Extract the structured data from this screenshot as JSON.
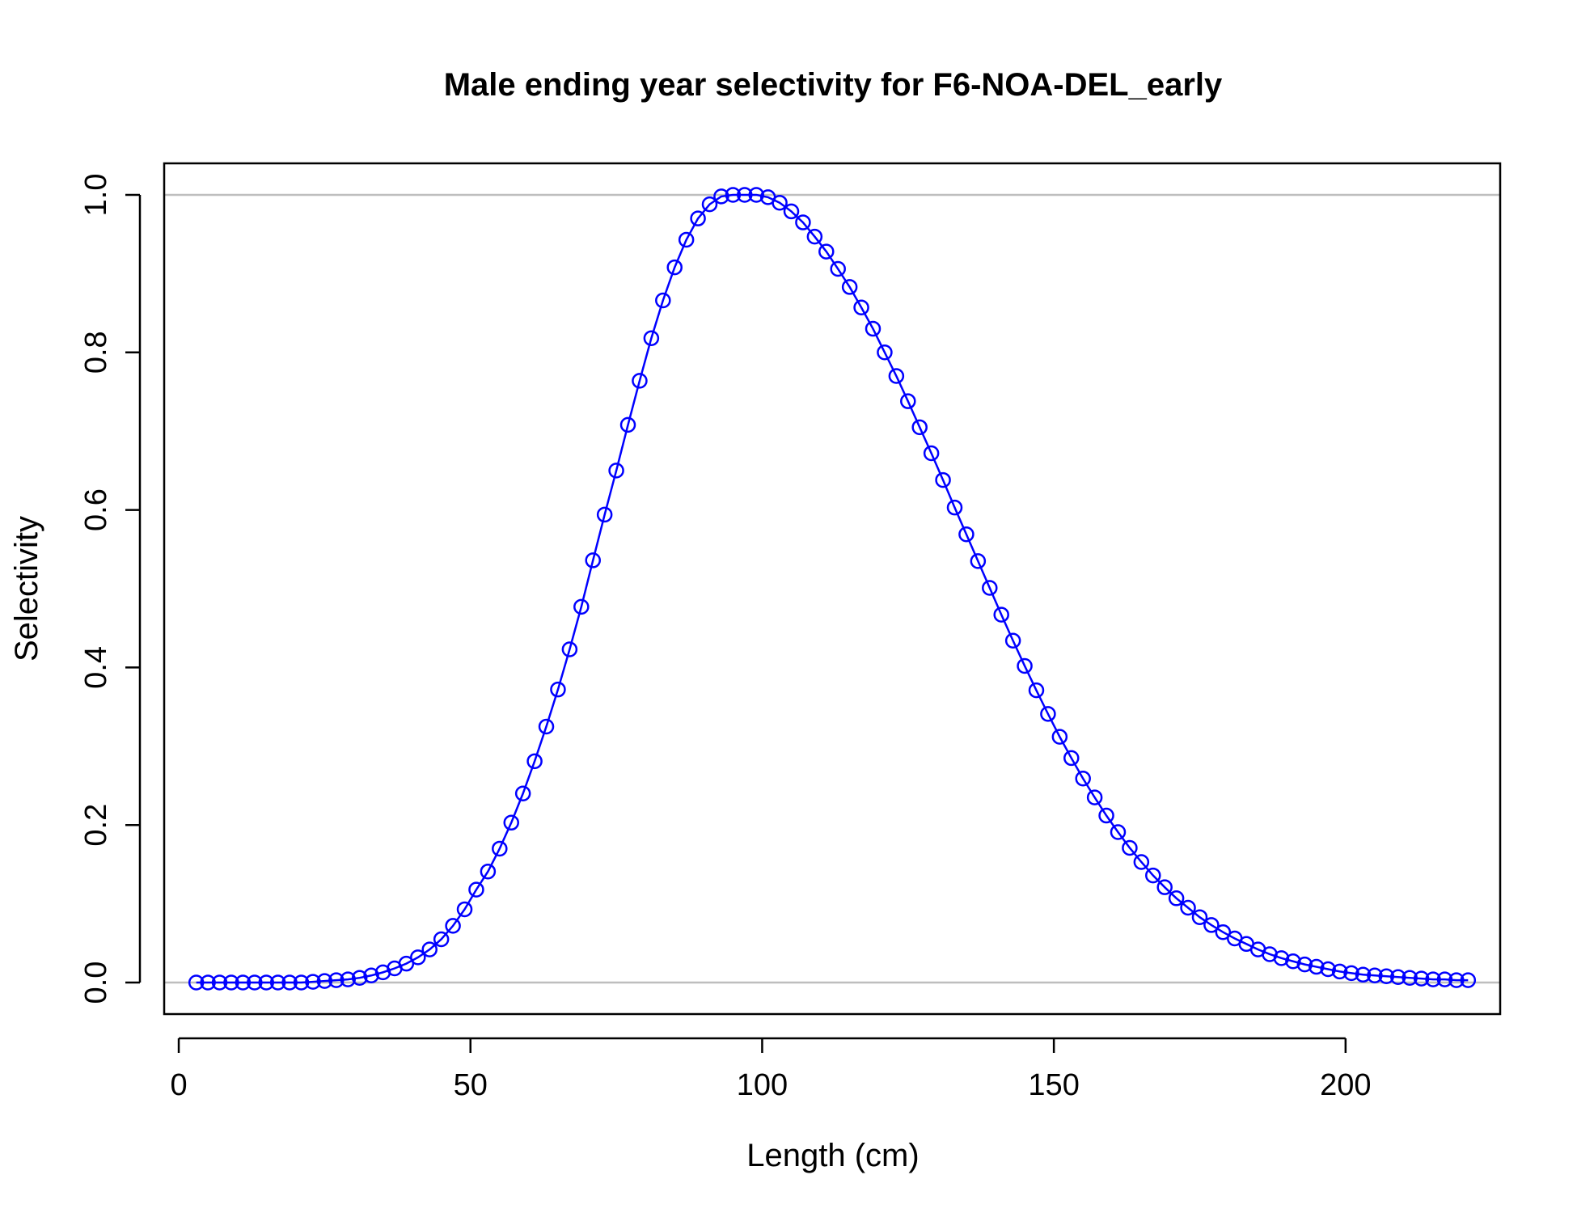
{
  "chart_data": {
    "type": "line",
    "title": "Male ending year selectivity for F6-NOA-DEL_early",
    "xlabel": "Length (cm)",
    "ylabel": "Selectivity",
    "xlim": [
      -2.5,
      226.5
    ],
    "ylim": [
      -0.04,
      1.04
    ],
    "x_ticks": [
      0,
      50,
      100,
      150,
      200
    ],
    "y_ticks": [
      0.0,
      0.2,
      0.4,
      0.6,
      0.8,
      1.0
    ],
    "x_tick_labels": [
      "0",
      "50",
      "100",
      "150",
      "200"
    ],
    "y_tick_labels": [
      "0.0",
      "0.2",
      "0.4",
      "0.6",
      "0.8",
      "1.0"
    ],
    "reference_lines_y": [
      0,
      1
    ],
    "grid": false,
    "colors": {
      "series": "#0000ff",
      "reference": "#bebebe",
      "axis": "#000000"
    },
    "series": [
      {
        "x": [
          3,
          5,
          7,
          9,
          11,
          13,
          15,
          17,
          19,
          21,
          23,
          25,
          27,
          29,
          31,
          33,
          35,
          37,
          39,
          41,
          43,
          45,
          47,
          49,
          51,
          53,
          55,
          57,
          59,
          61,
          63,
          65,
          67,
          69,
          71,
          73,
          75,
          77,
          79,
          81,
          83,
          85,
          87,
          89,
          91,
          93,
          95,
          97,
          99,
          101,
          103,
          105,
          107,
          109,
          111,
          113,
          115,
          117,
          119,
          121,
          123,
          125,
          127,
          129,
          131,
          133,
          135,
          137,
          139,
          141,
          143,
          145,
          147,
          149,
          151,
          153,
          155,
          157,
          159,
          161,
          163,
          165,
          167,
          169,
          171,
          173,
          175,
          177,
          179,
          181,
          183,
          185,
          187,
          189,
          191,
          193,
          195,
          197,
          199,
          201,
          203,
          205,
          207,
          209,
          211,
          213,
          215,
          217,
          219,
          221
        ],
        "y": [
          0.0,
          0.0,
          0.0,
          0.0,
          0.0,
          0.0,
          0.0,
          0.0,
          0.0,
          0.0,
          0.001,
          0.002,
          0.003,
          0.004,
          0.006,
          0.009,
          0.013,
          0.018,
          0.024,
          0.032,
          0.042,
          0.055,
          0.072,
          0.093,
          0.118,
          0.141,
          0.17,
          0.203,
          0.24,
          0.281,
          0.325,
          0.372,
          0.423,
          0.477,
          0.536,
          0.594,
          0.65,
          0.708,
          0.764,
          0.818,
          0.866,
          0.908,
          0.943,
          0.97,
          0.988,
          0.998,
          1.0,
          1.0,
          1.0,
          0.997,
          0.99,
          0.979,
          0.965,
          0.947,
          0.928,
          0.906,
          0.883,
          0.857,
          0.83,
          0.8,
          0.77,
          0.738,
          0.705,
          0.672,
          0.638,
          0.603,
          0.569,
          0.535,
          0.501,
          0.467,
          0.434,
          0.402,
          0.371,
          0.341,
          0.312,
          0.285,
          0.259,
          0.235,
          0.212,
          0.191,
          0.171,
          0.153,
          0.136,
          0.121,
          0.107,
          0.095,
          0.083,
          0.073,
          0.064,
          0.056,
          0.049,
          0.042,
          0.036,
          0.031,
          0.027,
          0.023,
          0.02,
          0.017,
          0.014,
          0.012,
          0.01,
          0.009,
          0.008,
          0.007,
          0.006,
          0.005,
          0.004,
          0.004,
          0.003,
          0.003
        ]
      }
    ]
  }
}
